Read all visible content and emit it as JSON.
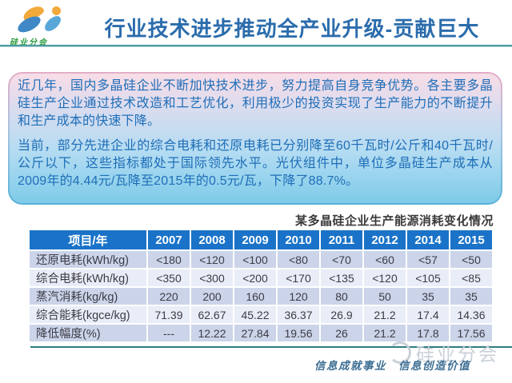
{
  "header": {
    "logo_caption": "硅业分会",
    "title": "行业技术进步推动全产业升级-贡献巨大"
  },
  "infobox": {
    "paragraph1": "近几年，国内多晶硅企业不断加快技术进步，努力提高自身竞争优势。各主要多晶硅生产企业通过技术改造和工艺优化，利用极少的投资实现了生产能力的不断提升和生产成本的快速下降。",
    "paragraph2": "当前，部分先进企业的综合电耗和还原电耗已分别降至60千瓦时/公斤和40千瓦时/公斤以下，这些指标都处于国际领先水平。光伏组件中，单位多晶硅生产成本从2009年的4.44元/瓦降至2015年的0.5元/瓦，下降了88.7%。"
  },
  "table": {
    "title": "某多晶硅企业生产能源消耗变化情况",
    "header": [
      "项目/年",
      "2007",
      "2008",
      "2009",
      "2010",
      "2011",
      "2012",
      "2014",
      "2015"
    ],
    "rows": [
      [
        "还原电耗(kWh/kg)",
        "<180",
        "<120",
        "<100",
        "<80",
        "<70",
        "<60",
        "<57",
        "<50"
      ],
      [
        "综合电耗(kWh/kg)",
        "<350",
        "<300",
        "<200",
        "<170",
        "<135",
        "<120",
        "<105",
        "<85"
      ],
      [
        "蒸汽消耗(kg/kg)",
        "220",
        "200",
        "160",
        "120",
        "80",
        "50",
        "35",
        "35"
      ],
      [
        "综合能耗(kgce/kg)",
        "71.39",
        "62.67",
        "45.22",
        "36.37",
        "26.9",
        "21.2",
        "17.4",
        "14.36"
      ],
      [
        "降低幅度(%)",
        "---",
        "12.22",
        "27.84",
        "19.56",
        "26",
        "21.2",
        "17.8",
        "17.56"
      ]
    ]
  },
  "footer": {
    "slogan": "信息成就事业　信息创造价值",
    "watermark": "硅业分会"
  },
  "colors": {
    "title": "#2b6cac",
    "bodyBlue": "#1e6eb8",
    "headerBg": "#1a73c8",
    "rowOdd": "#cbd4e9",
    "rowEven": "#e9edf7",
    "dividerTeal": "#4a9aa0",
    "footerTeal": "#2e7d80",
    "logoGreen": "#2f9e43",
    "logoOrange": "#f2a93b",
    "logoBlue": "#3f88c5",
    "logoBlue2": "#58a7d8",
    "watermark": "#c9d0d8",
    "slogan": "#3e6f94"
  }
}
